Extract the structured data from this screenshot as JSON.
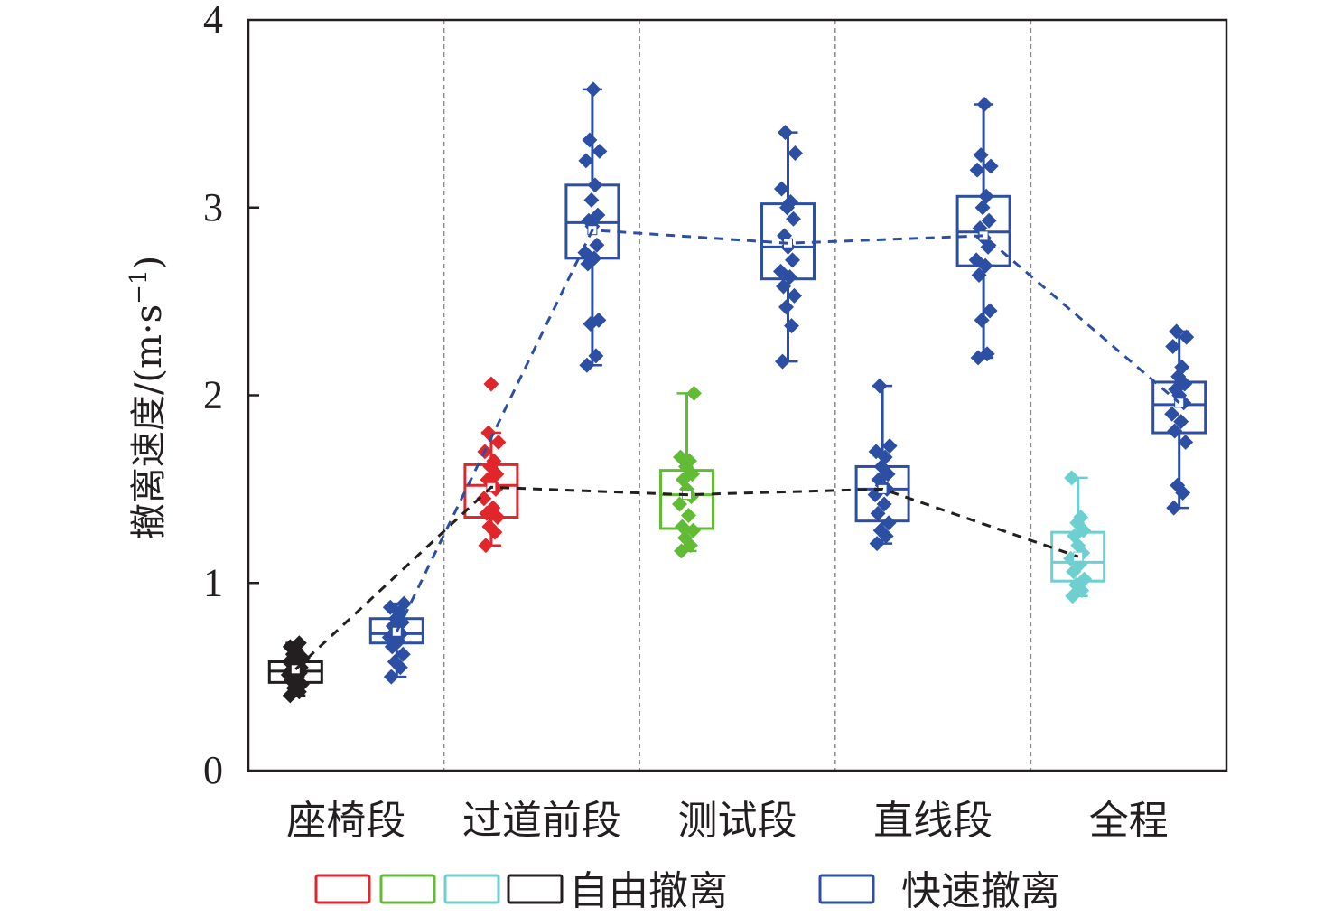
{
  "chart_data": {
    "type": "box",
    "title": "",
    "xlabel": "",
    "ylabel": "撤离速度/(m·s",
    "ylabel_sup": "−1",
    "ylabel_close": ")",
    "ylim": [
      0,
      4
    ],
    "yticks": [
      "0",
      "1",
      "2",
      "3",
      "4"
    ],
    "categories": [
      "座椅段",
      "过道前段",
      "测试段",
      "直线段",
      "全程"
    ],
    "grid": false,
    "legend": {
      "position": "bottom",
      "free_label": "自由撤离",
      "fast_label": "快速撤离"
    },
    "colors": {
      "red": "#e0262b",
      "green": "#62bb35",
      "cyan": "#6dcfd0",
      "black": "#231f20",
      "blue": "#2d4fa3",
      "divider": "#8a8a8a"
    },
    "series": [
      {
        "name": "自由撤离",
        "line_color": "#231f20",
        "boxes": [
          {
            "category": "座椅段",
            "color": "#231f20",
            "min": 0.4,
            "q1": 0.47,
            "median": 0.53,
            "q3": 0.58,
            "max": 0.68,
            "mean": 0.54,
            "points": [
              0.4,
              0.42,
              0.44,
              0.46,
              0.48,
              0.5,
              0.51,
              0.52,
              0.53,
              0.54,
              0.55,
              0.56,
              0.57,
              0.58,
              0.6,
              0.62,
              0.64,
              0.66,
              0.68
            ]
          },
          {
            "category": "过道前段",
            "color": "#e0262b",
            "min": 1.2,
            "q1": 1.35,
            "median": 1.52,
            "q3": 1.63,
            "max": 1.8,
            "mean": 1.51,
            "outliers": [
              2.06
            ],
            "points": [
              1.2,
              1.27,
              1.3,
              1.35,
              1.37,
              1.4,
              1.45,
              1.5,
              1.53,
              1.55,
              1.58,
              1.62,
              1.65,
              1.7,
              1.75,
              1.8
            ]
          },
          {
            "category": "测试段",
            "color": "#62bb35",
            "min": 1.17,
            "q1": 1.29,
            "median": 1.47,
            "q3": 1.6,
            "max": 2.01,
            "mean": 1.47,
            "points": [
              1.17,
              1.2,
              1.24,
              1.28,
              1.3,
              1.36,
              1.42,
              1.46,
              1.5,
              1.55,
              1.58,
              1.62,
              1.65,
              1.67,
              2.01
            ]
          },
          {
            "category": "直线段",
            "color": "#2d4fa3",
            "min": 1.21,
            "q1": 1.33,
            "median": 1.5,
            "q3": 1.62,
            "max": 2.05,
            "mean": 1.5,
            "points": [
              1.21,
              1.25,
              1.28,
              1.32,
              1.37,
              1.42,
              1.47,
              1.5,
              1.52,
              1.55,
              1.58,
              1.62,
              1.67,
              1.7,
              1.73,
              2.05
            ]
          },
          {
            "category": "全程",
            "color": "#6dcfd0",
            "min": 0.93,
            "q1": 1.01,
            "median": 1.11,
            "q3": 1.27,
            "max": 1.56,
            "mean": 1.14,
            "points": [
              0.93,
              0.96,
              0.99,
              1.02,
              1.06,
              1.1,
              1.13,
              1.16,
              1.2,
              1.25,
              1.28,
              1.32,
              1.35,
              1.56
            ]
          }
        ]
      },
      {
        "name": "快速撤离",
        "line_color": "#2d4fa3",
        "boxes": [
          {
            "category": "座椅段",
            "color": "#2d4fa3",
            "min": 0.5,
            "q1": 0.68,
            "median": 0.73,
            "q3": 0.81,
            "max": 0.89,
            "mean": 0.74,
            "points": [
              0.5,
              0.55,
              0.58,
              0.62,
              0.66,
              0.69,
              0.71,
              0.73,
              0.75,
              0.77,
              0.79,
              0.81,
              0.84,
              0.87,
              0.89
            ]
          },
          {
            "category": "过道前段",
            "color": "#2d4fa3",
            "min": 2.16,
            "q1": 2.73,
            "median": 2.92,
            "q3": 3.12,
            "max": 3.63,
            "mean": 2.88,
            "points": [
              2.16,
              2.21,
              2.38,
              2.4,
              2.7,
              2.73,
              2.76,
              2.8,
              2.9,
              2.93,
              2.96,
              3.04,
              3.12,
              3.25,
              3.3,
              3.36,
              3.63
            ]
          },
          {
            "category": "测试段",
            "color": "#2d4fa3",
            "min": 2.18,
            "q1": 2.62,
            "median": 2.79,
            "q3": 3.02,
            "max": 3.4,
            "mean": 2.81,
            "points": [
              2.18,
              2.37,
              2.47,
              2.53,
              2.58,
              2.63,
              2.66,
              2.72,
              2.79,
              2.85,
              2.94,
              3.0,
              3.03,
              3.1,
              3.29,
              3.4
            ]
          },
          {
            "category": "直线段",
            "color": "#2d4fa3",
            "min": 2.2,
            "q1": 2.69,
            "median": 2.87,
            "q3": 3.06,
            "max": 3.55,
            "mean": 2.85,
            "points": [
              2.2,
              2.22,
              2.4,
              2.45,
              2.64,
              2.69,
              2.72,
              2.79,
              2.84,
              2.89,
              2.93,
              3.0,
              3.06,
              3.2,
              3.22,
              3.28,
              3.55
            ]
          },
          {
            "category": "全程",
            "color": "#2d4fa3",
            "min": 1.4,
            "q1": 1.8,
            "median": 1.95,
            "q3": 2.07,
            "max": 2.34,
            "mean": 1.96,
            "points": [
              1.4,
              1.48,
              1.52,
              1.75,
              1.81,
              1.86,
              1.9,
              1.96,
              2.0,
              2.03,
              2.06,
              2.1,
              2.15,
              2.26,
              2.31,
              2.34
            ]
          }
        ]
      }
    ]
  }
}
